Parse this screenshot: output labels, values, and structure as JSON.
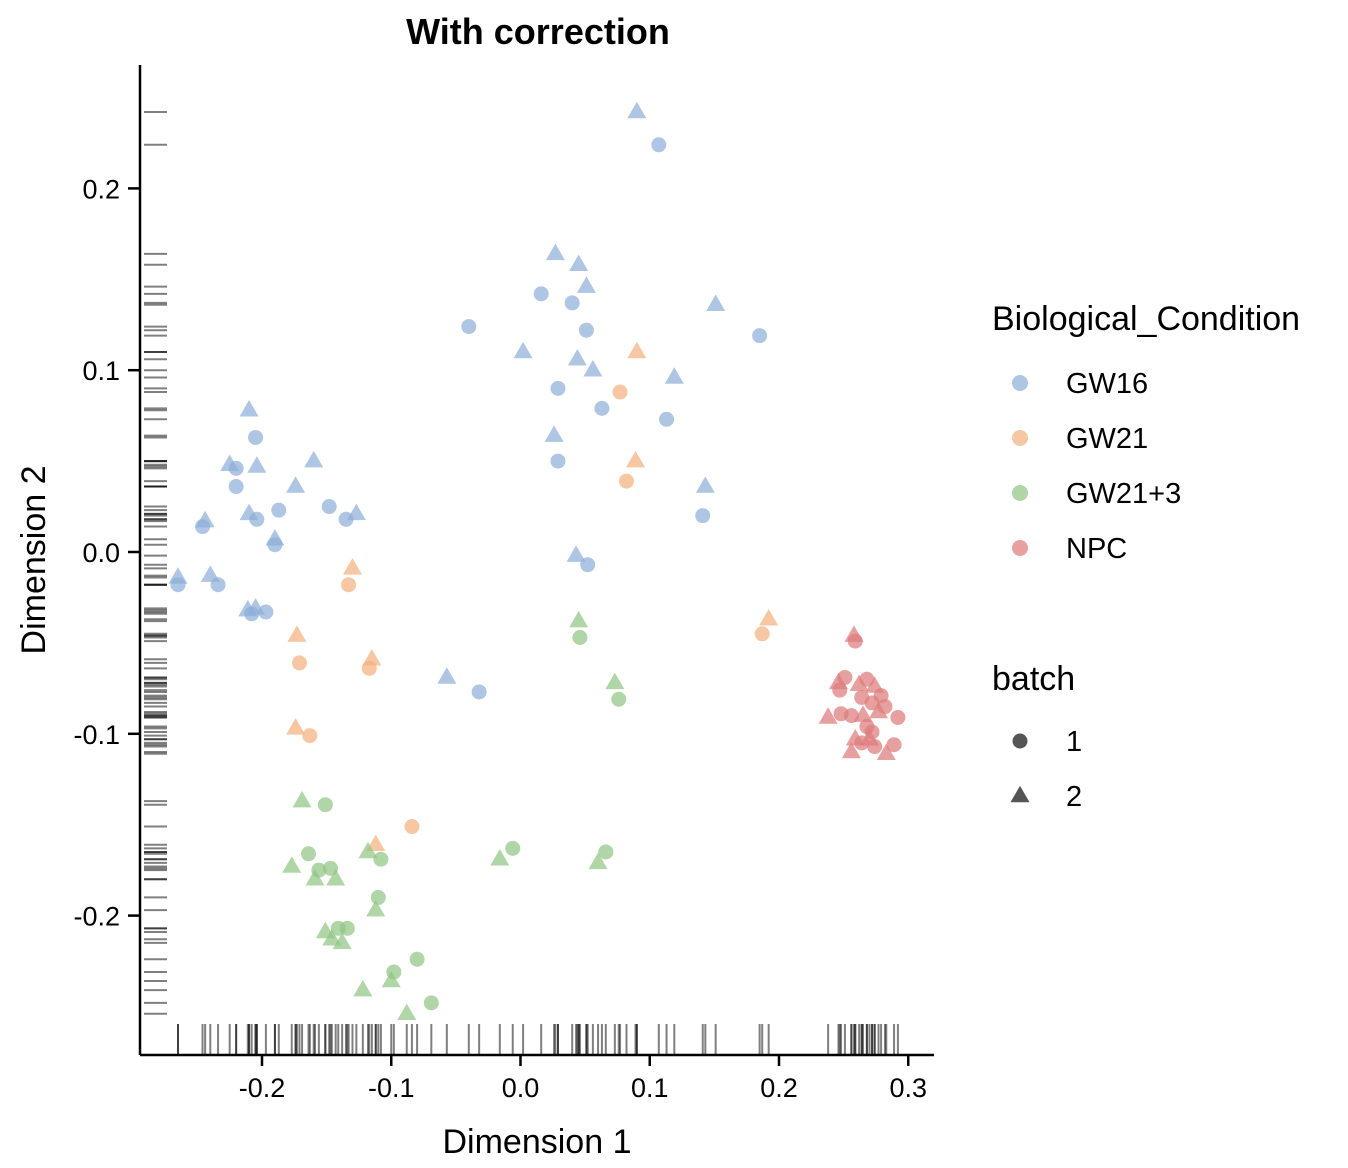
{
  "chart_data": {
    "type": "scatter",
    "title": "With correction",
    "xlabel": "Dimension 1",
    "ylabel": "Dimension 2",
    "xlim": [
      -0.29,
      0.32
    ],
    "ylim": [
      -0.277,
      0.277
    ],
    "xticks": [
      -0.2,
      -0.1,
      0.0,
      0.1,
      0.2,
      0.3
    ],
    "xtick_labels": [
      "-0.2",
      "-0.1",
      "0.0",
      "0.1",
      "0.2",
      "0.3"
    ],
    "yticks": [
      -0.2,
      -0.1,
      0.0,
      0.1,
      0.2
    ],
    "ytick_labels": [
      "-0.2",
      "-0.1",
      "0.0",
      "0.1",
      "0.2"
    ],
    "rug": true,
    "grid": false,
    "legend": {
      "placement": "right",
      "color_title": "Biological_Condition",
      "shape_title": "batch",
      "shape_entries": [
        {
          "label": "1",
          "shape": "circle"
        },
        {
          "label": "2",
          "shape": "triangle"
        }
      ]
    },
    "series": [
      {
        "name": "GW16",
        "color": "#8faed8",
        "points": [
          {
            "x": 0.09,
            "y": 0.242,
            "batch": "2"
          },
          {
            "x": 0.107,
            "y": 0.224,
            "batch": "1"
          },
          {
            "x": 0.027,
            "y": 0.164,
            "batch": "2"
          },
          {
            "x": 0.045,
            "y": 0.158,
            "batch": "2"
          },
          {
            "x": 0.051,
            "y": 0.146,
            "batch": "2"
          },
          {
            "x": 0.016,
            "y": 0.142,
            "batch": "1"
          },
          {
            "x": 0.04,
            "y": 0.137,
            "batch": "1"
          },
          {
            "x": 0.151,
            "y": 0.136,
            "batch": "2"
          },
          {
            "x": -0.04,
            "y": 0.124,
            "batch": "1"
          },
          {
            "x": 0.051,
            "y": 0.122,
            "batch": "1"
          },
          {
            "x": 0.185,
            "y": 0.119,
            "batch": "1"
          },
          {
            "x": 0.002,
            "y": 0.11,
            "batch": "2"
          },
          {
            "x": 0.044,
            "y": 0.106,
            "batch": "2"
          },
          {
            "x": 0.056,
            "y": 0.1,
            "batch": "2"
          },
          {
            "x": 0.119,
            "y": 0.096,
            "batch": "2"
          },
          {
            "x": 0.029,
            "y": 0.09,
            "batch": "1"
          },
          {
            "x": 0.063,
            "y": 0.079,
            "batch": "1"
          },
          {
            "x": 0.113,
            "y": 0.073,
            "batch": "1"
          },
          {
            "x": 0.026,
            "y": 0.064,
            "batch": "2"
          },
          {
            "x": 0.029,
            "y": 0.05,
            "batch": "1"
          },
          {
            "x": 0.143,
            "y": 0.036,
            "batch": "2"
          },
          {
            "x": 0.141,
            "y": 0.02,
            "batch": "1"
          },
          {
            "x": 0.043,
            "y": -0.002,
            "batch": "2"
          },
          {
            "x": 0.052,
            "y": -0.007,
            "batch": "1"
          },
          {
            "x": -0.057,
            "y": -0.069,
            "batch": "2"
          },
          {
            "x": -0.032,
            "y": -0.077,
            "batch": "1"
          },
          {
            "x": -0.21,
            "y": 0.078,
            "batch": "2"
          },
          {
            "x": -0.205,
            "y": 0.063,
            "batch": "1"
          },
          {
            "x": -0.225,
            "y": 0.048,
            "batch": "2"
          },
          {
            "x": -0.204,
            "y": 0.047,
            "batch": "2"
          },
          {
            "x": -0.16,
            "y": 0.05,
            "batch": "2"
          },
          {
            "x": -0.22,
            "y": 0.046,
            "batch": "1"
          },
          {
            "x": -0.22,
            "y": 0.036,
            "batch": "1"
          },
          {
            "x": -0.174,
            "y": 0.036,
            "batch": "2"
          },
          {
            "x": -0.148,
            "y": 0.025,
            "batch": "1"
          },
          {
            "x": -0.187,
            "y": 0.023,
            "batch": "1"
          },
          {
            "x": -0.21,
            "y": 0.021,
            "batch": "2"
          },
          {
            "x": -0.127,
            "y": 0.021,
            "batch": "2"
          },
          {
            "x": -0.204,
            "y": 0.018,
            "batch": "1"
          },
          {
            "x": -0.135,
            "y": 0.018,
            "batch": "1"
          },
          {
            "x": -0.244,
            "y": 0.017,
            "batch": "2"
          },
          {
            "x": -0.246,
            "y": 0.014,
            "batch": "1"
          },
          {
            "x": -0.19,
            "y": 0.007,
            "batch": "2"
          },
          {
            "x": -0.19,
            "y": 0.004,
            "batch": "1"
          },
          {
            "x": -0.265,
            "y": -0.014,
            "batch": "2"
          },
          {
            "x": -0.265,
            "y": -0.018,
            "batch": "1"
          },
          {
            "x": -0.24,
            "y": -0.013,
            "batch": "2"
          },
          {
            "x": -0.234,
            "y": -0.018,
            "batch": "1"
          },
          {
            "x": -0.211,
            "y": -0.032,
            "batch": "2"
          },
          {
            "x": -0.205,
            "y": -0.031,
            "batch": "2"
          },
          {
            "x": -0.208,
            "y": -0.034,
            "batch": "1"
          },
          {
            "x": -0.197,
            "y": -0.033,
            "batch": "1"
          }
        ]
      },
      {
        "name": "GW21",
        "color": "#f2b27e",
        "points": [
          {
            "x": 0.09,
            "y": 0.11,
            "batch": "2"
          },
          {
            "x": 0.077,
            "y": 0.088,
            "batch": "1"
          },
          {
            "x": 0.089,
            "y": 0.05,
            "batch": "2"
          },
          {
            "x": 0.082,
            "y": 0.039,
            "batch": "1"
          },
          {
            "x": 0.192,
            "y": -0.037,
            "batch": "2"
          },
          {
            "x": 0.187,
            "y": -0.045,
            "batch": "1"
          },
          {
            "x": -0.13,
            "y": -0.009,
            "batch": "2"
          },
          {
            "x": -0.133,
            "y": -0.018,
            "batch": "1"
          },
          {
            "x": -0.173,
            "y": -0.046,
            "batch": "2"
          },
          {
            "x": -0.171,
            "y": -0.061,
            "batch": "1"
          },
          {
            "x": -0.115,
            "y": -0.059,
            "batch": "2"
          },
          {
            "x": -0.117,
            "y": -0.064,
            "batch": "1"
          },
          {
            "x": -0.174,
            "y": -0.097,
            "batch": "2"
          },
          {
            "x": -0.163,
            "y": -0.101,
            "batch": "1"
          },
          {
            "x": -0.084,
            "y": -0.151,
            "batch": "1"
          },
          {
            "x": -0.112,
            "y": -0.161,
            "batch": "2"
          }
        ]
      },
      {
        "name": "GW21+3",
        "color": "#92c585",
        "points": [
          {
            "x": 0.045,
            "y": -0.038,
            "batch": "2"
          },
          {
            "x": 0.046,
            "y": -0.047,
            "batch": "1"
          },
          {
            "x": 0.073,
            "y": -0.072,
            "batch": "2"
          },
          {
            "x": 0.076,
            "y": -0.081,
            "batch": "1"
          },
          {
            "x": -0.169,
            "y": -0.137,
            "batch": "2"
          },
          {
            "x": -0.151,
            "y": -0.139,
            "batch": "1"
          },
          {
            "x": -0.164,
            "y": -0.166,
            "batch": "1"
          },
          {
            "x": -0.177,
            "y": -0.173,
            "batch": "2"
          },
          {
            "x": -0.156,
            "y": -0.175,
            "batch": "1"
          },
          {
            "x": -0.147,
            "y": -0.174,
            "batch": "1"
          },
          {
            "x": -0.159,
            "y": -0.18,
            "batch": "2"
          },
          {
            "x": -0.143,
            "y": -0.18,
            "batch": "2"
          },
          {
            "x": -0.118,
            "y": -0.165,
            "batch": "2"
          },
          {
            "x": -0.108,
            "y": -0.169,
            "batch": "1"
          },
          {
            "x": -0.11,
            "y": -0.19,
            "batch": "1"
          },
          {
            "x": -0.112,
            "y": -0.197,
            "batch": "2"
          },
          {
            "x": -0.016,
            "y": -0.169,
            "batch": "2"
          },
          {
            "x": -0.006,
            "y": -0.163,
            "batch": "1"
          },
          {
            "x": 0.06,
            "y": -0.171,
            "batch": "2"
          },
          {
            "x": 0.066,
            "y": -0.165,
            "batch": "1"
          },
          {
            "x": -0.151,
            "y": -0.209,
            "batch": "2"
          },
          {
            "x": -0.146,
            "y": -0.213,
            "batch": "2"
          },
          {
            "x": -0.138,
            "y": -0.215,
            "batch": "2"
          },
          {
            "x": -0.141,
            "y": -0.207,
            "batch": "1"
          },
          {
            "x": -0.134,
            "y": -0.207,
            "batch": "1"
          },
          {
            "x": -0.1,
            "y": -0.236,
            "batch": "2"
          },
          {
            "x": -0.098,
            "y": -0.231,
            "batch": "1"
          },
          {
            "x": -0.08,
            "y": -0.224,
            "batch": "1"
          },
          {
            "x": -0.122,
            "y": -0.241,
            "batch": "2"
          },
          {
            "x": -0.069,
            "y": -0.248,
            "batch": "1"
          },
          {
            "x": -0.088,
            "y": -0.254,
            "batch": "2"
          }
        ]
      },
      {
        "name": "NPC",
        "color": "#de7b7b",
        "points": [
          {
            "x": 0.258,
            "y": -0.046,
            "batch": "2"
          },
          {
            "x": 0.259,
            "y": -0.049,
            "batch": "1"
          },
          {
            "x": 0.246,
            "y": -0.072,
            "batch": "2"
          },
          {
            "x": 0.251,
            "y": -0.069,
            "batch": "1"
          },
          {
            "x": 0.262,
            "y": -0.073,
            "batch": "2"
          },
          {
            "x": 0.268,
            "y": -0.07,
            "batch": "1"
          },
          {
            "x": 0.247,
            "y": -0.076,
            "batch": "1"
          },
          {
            "x": 0.274,
            "y": -0.074,
            "batch": "2"
          },
          {
            "x": 0.279,
            "y": -0.079,
            "batch": "1"
          },
          {
            "x": 0.264,
            "y": -0.08,
            "batch": "1"
          },
          {
            "x": 0.272,
            "y": -0.083,
            "batch": "1"
          },
          {
            "x": 0.282,
            "y": -0.085,
            "batch": "1"
          },
          {
            "x": 0.277,
            "y": -0.088,
            "batch": "2"
          },
          {
            "x": 0.238,
            "y": -0.091,
            "batch": "2"
          },
          {
            "x": 0.248,
            "y": -0.089,
            "batch": "1"
          },
          {
            "x": 0.256,
            "y": -0.09,
            "batch": "1"
          },
          {
            "x": 0.265,
            "y": -0.09,
            "batch": "2"
          },
          {
            "x": 0.292,
            "y": -0.091,
            "batch": "1"
          },
          {
            "x": 0.268,
            "y": -0.096,
            "batch": "1"
          },
          {
            "x": 0.272,
            "y": -0.099,
            "batch": "1"
          },
          {
            "x": 0.259,
            "y": -0.103,
            "batch": "2"
          },
          {
            "x": 0.264,
            "y": -0.105,
            "batch": "1"
          },
          {
            "x": 0.27,
            "y": -0.103,
            "batch": "2"
          },
          {
            "x": 0.274,
            "y": -0.107,
            "batch": "1"
          },
          {
            "x": 0.289,
            "y": -0.106,
            "batch": "1"
          },
          {
            "x": 0.256,
            "y": -0.11,
            "batch": "2"
          },
          {
            "x": 0.283,
            "y": -0.111,
            "batch": "2"
          }
        ]
      }
    ]
  }
}
